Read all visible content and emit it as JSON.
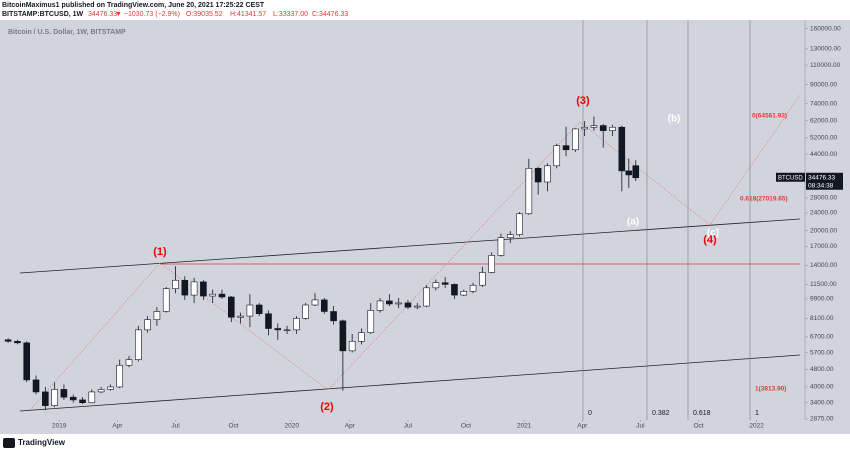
{
  "header": {
    "published": "BitcoinMaximus1 published on TradingView.com, June 20, 2021 17:25:22 CEST",
    "symbol": "BITSTAMP:BTCUSD, 1W",
    "last": "34476.33",
    "change": "▼ −1030.73 (−2.9%)",
    "open": "O:39035.52",
    "high": "H:41341.57",
    "low": "L:33337.00",
    "close": "C:34476.33"
  },
  "chart_data": {
    "type": "candlestick",
    "title": "Bitcoin / U.S. Dollar, 1W, BITSTAMP",
    "x": [
      2018.78,
      2018.82,
      2018.86,
      2018.9,
      2018.94,
      2018.98,
      2019.02,
      2019.06,
      2019.1,
      2019.14,
      2019.18,
      2019.22,
      2019.26,
      2019.3,
      2019.34,
      2019.38,
      2019.42,
      2019.46,
      2019.5,
      2019.54,
      2019.58,
      2019.62,
      2019.66,
      2019.7,
      2019.74,
      2019.78,
      2019.82,
      2019.86,
      2019.9,
      2019.94,
      2019.98,
      2020.02,
      2020.06,
      2020.1,
      2020.14,
      2020.18,
      2020.22,
      2020.26,
      2020.3,
      2020.34,
      2020.38,
      2020.42,
      2020.46,
      2020.5,
      2020.54,
      2020.58,
      2020.62,
      2020.66,
      2020.7,
      2020.74,
      2020.78,
      2020.82,
      2020.86,
      2020.9,
      2020.94,
      2020.98,
      2021.02,
      2021.06,
      2021.1,
      2021.14,
      2021.18,
      2021.22,
      2021.26,
      2021.3,
      2021.34,
      2021.38,
      2021.42,
      2021.45,
      2021.48
    ],
    "open": [
      6500,
      6400,
      6300,
      4300,
      3800,
      3300,
      3900,
      3600,
      3500,
      3400,
      3800,
      3900,
      4000,
      5000,
      5300,
      7200,
      8000,
      8700,
      11000,
      12000,
      10300,
      11800,
      10200,
      10400,
      10100,
      8200,
      8300,
      9300,
      8500,
      7300,
      7200,
      7200,
      8100,
      9300,
      9800,
      8700,
      7900,
      5800,
      6400,
      7000,
      8800,
      9700,
      9400,
      9500,
      9100,
      9200,
      11100,
      11700,
      11500,
      10300,
      10700,
      11400,
      13000,
      15500,
      18600,
      19200,
      23800,
      38000,
      33000,
      39000,
      48000,
      46000,
      57000,
      58000,
      59000,
      56000,
      58000,
      37000,
      39035.52
    ],
    "high": [
      6600,
      6500,
      6400,
      4500,
      4000,
      4200,
      4100,
      3700,
      3600,
      3900,
      4000,
      4100,
      5300,
      5500,
      7500,
      8300,
      9100,
      11200,
      13880,
      12500,
      12300,
      12000,
      10900,
      10900,
      10200,
      8600,
      10400,
      9500,
      8800,
      7700,
      7500,
      8300,
      9500,
      10500,
      10000,
      9200,
      8000,
      6900,
      7300,
      9500,
      10000,
      10400,
      10000,
      9800,
      9500,
      11400,
      12100,
      12400,
      11600,
      10900,
      11700,
      13800,
      16000,
      19400,
      19900,
      24200,
      41900,
      38500,
      40000,
      49000,
      58300,
      57400,
      61800,
      64800,
      60000,
      59500,
      59000,
      42000,
      41341.57
    ],
    "low": [
      6300,
      6200,
      4200,
      3700,
      3150,
      3250,
      3500,
      3400,
      3350,
      3380,
      3750,
      3850,
      3950,
      4900,
      5200,
      7000,
      7500,
      8600,
      10500,
      9800,
      9500,
      9800,
      9500,
      9900,
      7800,
      7700,
      7400,
      8300,
      6800,
      6500,
      6900,
      6900,
      8000,
      9200,
      8500,
      7600,
      3850,
      5700,
      6200,
      6900,
      8600,
      9200,
      9000,
      8900,
      8900,
      9100,
      10800,
      11100,
      9900,
      10200,
      10500,
      11200,
      12900,
      15300,
      17600,
      18800,
      23500,
      29000,
      30000,
      38000,
      43000,
      45000,
      53000,
      56000,
      47000,
      53000,
      30000,
      31000,
      33337
    ],
    "close": [
      6400,
      6300,
      4300,
      3800,
      3300,
      3900,
      3600,
      3500,
      3400,
      3800,
      3900,
      4000,
      5000,
      5300,
      7200,
      8000,
      8700,
      11000,
      12000,
      10300,
      11800,
      10200,
      10400,
      10100,
      8200,
      8300,
      9300,
      8500,
      7300,
      7200,
      7200,
      8100,
      9300,
      9800,
      8700,
      7900,
      5800,
      6400,
      7000,
      8800,
      9700,
      9400,
      9500,
      9100,
      9200,
      11100,
      11700,
      11500,
      10300,
      10700,
      11400,
      13000,
      15500,
      18600,
      19200,
      23800,
      38000,
      33000,
      39000,
      48000,
      46000,
      57000,
      58000,
      59000,
      56000,
      58000,
      37000,
      35500,
      34476.33
    ],
    "xlim": [
      2018.745,
      2022.208
    ],
    "xticks": [
      2019,
      {
        "value": 2019.25,
        "label": "Apr"
      },
      {
        "value": 2019.5,
        "label": "Jul"
      },
      {
        "value": 2019.75,
        "label": "Oct"
      },
      2020,
      {
        "value": 2020.25,
        "label": "Apr"
      },
      {
        "value": 2020.5,
        "label": "Jul"
      },
      {
        "value": 2020.75,
        "label": "Oct"
      },
      2021,
      {
        "value": 2021.25,
        "label": "Apr"
      },
      {
        "value": 2021.5,
        "label": "Jul"
      },
      {
        "value": 2021.75,
        "label": "Oct"
      },
      2022
    ],
    "ylim": [
      2846,
      175000
    ],
    "log_scale": true,
    "yticks": [
      {
        "value": 160000,
        "label": "160000.00"
      },
      {
        "value": 130000,
        "label": "130000.00"
      },
      {
        "value": 110000,
        "label": "110000.00"
      },
      {
        "value": 90000,
        "label": "90000.00"
      },
      {
        "value": 74000,
        "label": "74000.00"
      },
      {
        "value": 62000,
        "label": "62000.00"
      },
      {
        "value": 52000,
        "label": "52000.00"
      },
      {
        "value": 44000,
        "label": "44000.00"
      },
      {
        "value": 28000,
        "label": "28000.00"
      },
      {
        "value": 24000,
        "label": "24000.00"
      },
      {
        "value": 20000,
        "label": "20000.00"
      },
      {
        "value": 17000,
        "label": "17000.00"
      },
      {
        "value": 14000,
        "label": "14000.00"
      },
      {
        "value": 11500,
        "label": "11500.00"
      },
      {
        "value": 9900,
        "label": "9900.00"
      },
      {
        "value": 8100,
        "label": "8100.00"
      },
      {
        "value": 6700,
        "label": "6700.00"
      },
      {
        "value": 5700,
        "label": "5700.00"
      },
      {
        "value": 4800,
        "label": "4800.00"
      },
      {
        "value": 4000,
        "label": "4000.00"
      },
      {
        "value": 3400,
        "label": "3400.00"
      },
      {
        "value": 2875,
        "label": "2875.00"
      }
    ],
    "up_color": "#ffffff",
    "down_color": "#131722",
    "price_label": {
      "symbol": "BTCUSD",
      "price": "34476.33",
      "countdown": "08:34:38"
    },
    "annotations": [
      "(1)",
      "(2)",
      "(3)",
      "(4)",
      "(a)",
      "(b)",
      "(c)",
      "0(64561.93)",
      "0.618(27019.65)",
      "1(3813.90)"
    ],
    "fib_time": [
      0,
      0.382,
      0.618,
      1
    ]
  },
  "footer": {
    "brand": "TradingView"
  }
}
